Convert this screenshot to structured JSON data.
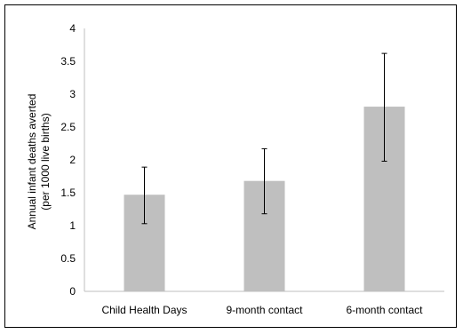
{
  "chart_data": {
    "type": "bar",
    "title": "",
    "xlabel": "",
    "ylabel_lines": [
      "Annual infant deaths averted",
      "(per 1000 live births)"
    ],
    "categories": [
      "Child Health Days",
      "9-month contact",
      "6-month contact"
    ],
    "values": [
      1.47,
      1.68,
      2.81
    ],
    "error_low": [
      1.03,
      1.18,
      1.98
    ],
    "error_high": [
      1.89,
      2.17,
      3.62
    ],
    "ylim": [
      0,
      4
    ],
    "yticks": [
      "0",
      "0.5",
      "1",
      "1.5",
      "2",
      "2.5",
      "3",
      "3.5",
      "4"
    ],
    "grid": false,
    "legend": "none",
    "bar_color": "#bfbfbf",
    "axis_color": "#bfbfbf",
    "error_bar_color": "#000000"
  }
}
